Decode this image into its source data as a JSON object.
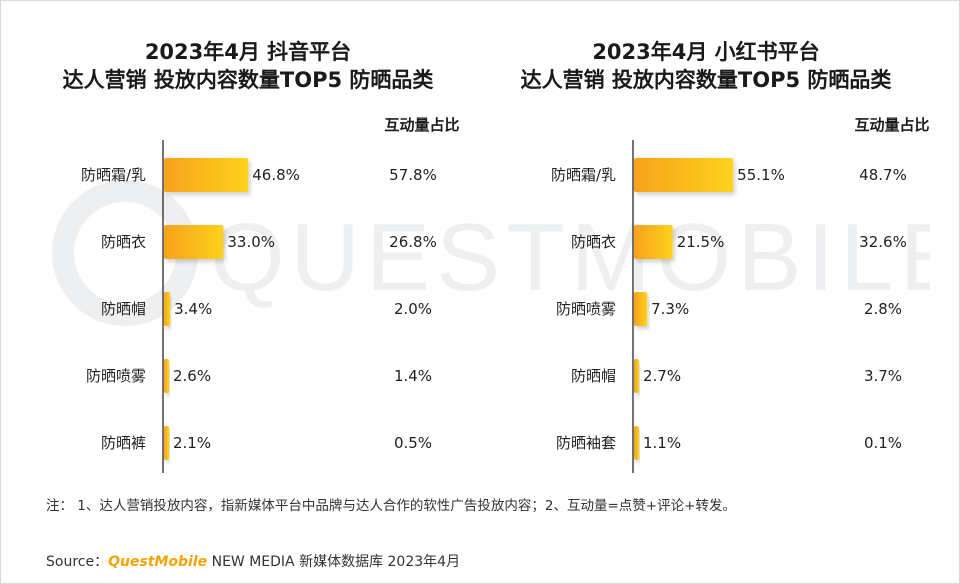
{
  "note": "注： 1、达人营销投放内容，指新媒体平台中品牌与达人合作的软性广告投放内容；2、互动量=点赞+评论+转发。",
  "source": {
    "label": "Source：",
    "brand": "QuestMobile",
    "rest": " NEW MEDIA 新媒体数据库 2023年4月"
  },
  "watermark_text": "QUESTMOBILE",
  "colors": {
    "bar_start": "#f7a21b",
    "bar_end": "#ffd21a",
    "axis": "#444444"
  },
  "chart_data": [
    {
      "type": "bar",
      "orientation": "horizontal",
      "title_line1": "2023年4月 抖音平台",
      "title_line2": "达人营销 投放内容数量TOP5 防晒品类",
      "share_header": "互动量占比",
      "categories": [
        "防晒霜/乳",
        "防晒衣",
        "防晒帽",
        "防晒喷雾",
        "防晒裤"
      ],
      "values": [
        46.8,
        33.0,
        3.4,
        2.6,
        2.1
      ],
      "value_labels": [
        "46.8%",
        "33.0%",
        "3.4%",
        "2.6%",
        "2.1%"
      ],
      "share_labels": [
        "57.8%",
        "26.8%",
        "2.0%",
        "1.4%",
        "0.5%"
      ]
    },
    {
      "type": "bar",
      "orientation": "horizontal",
      "title_line1": "2023年4月 小红书平台",
      "title_line2": "达人营销 投放内容数量TOP5 防晒品类",
      "share_header": "互动量占比",
      "categories": [
        "防晒霜/乳",
        "防晒衣",
        "防晒喷雾",
        "防晒帽",
        "防晒袖套"
      ],
      "values": [
        55.1,
        21.5,
        7.3,
        2.7,
        1.1
      ],
      "value_labels": [
        "55.1%",
        "21.5%",
        "7.3%",
        "2.7%",
        "1.1%"
      ],
      "share_labels": [
        "48.7%",
        "32.6%",
        "2.8%",
        "3.7%",
        "0.1%"
      ]
    }
  ]
}
